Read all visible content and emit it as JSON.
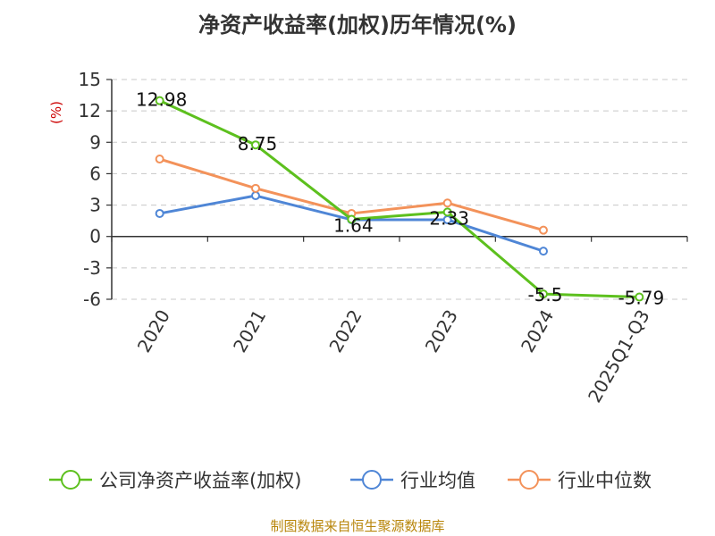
{
  "chart_data": {
    "type": "line",
    "title": "净资产收益率(加权)历年情况(%)",
    "ylabel": "(%)",
    "xlabel": "",
    "categories": [
      "2020",
      "2021",
      "2022",
      "2023",
      "2024",
      "2025Q1-Q3"
    ],
    "ylim": [
      -6,
      15
    ],
    "yticks": [
      15,
      12,
      9,
      6,
      3,
      0,
      -3,
      -6
    ],
    "grid": true,
    "legend_position": "bottom",
    "series": [
      {
        "name": "公司净资产收益率(加权)",
        "color": "#5dc01e",
        "values": [
          12.98,
          8.75,
          1.64,
          2.33,
          -5.5,
          -5.79
        ],
        "labels": [
          "12.98",
          "8.75",
          "1.64",
          "2.33",
          "-5.5",
          "-5.79"
        ]
      },
      {
        "name": "行业均值",
        "color": "#4f86d6",
        "values": [
          2.2,
          3.9,
          1.6,
          1.6,
          -1.4,
          null
        ]
      },
      {
        "name": "行业中位数",
        "color": "#f3925a",
        "values": [
          7.4,
          4.6,
          2.2,
          3.2,
          0.6,
          null
        ]
      }
    ]
  },
  "footer": "制图数据来自恒生聚源数据库"
}
